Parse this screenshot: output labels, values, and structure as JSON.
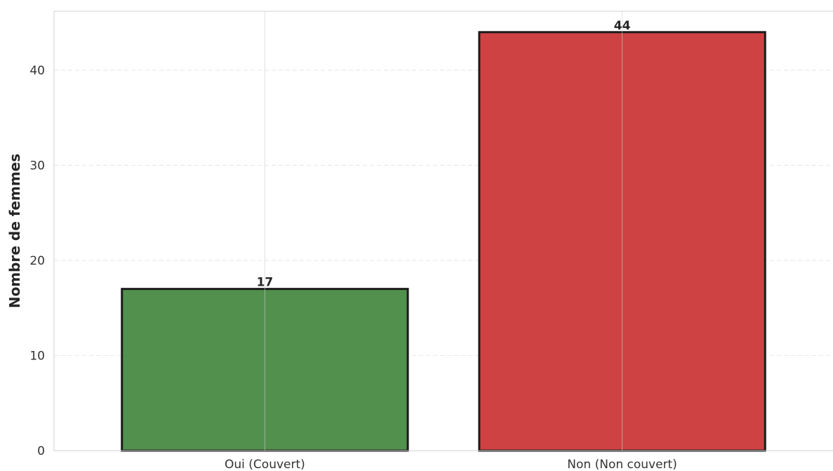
{
  "chart_data": {
    "type": "bar",
    "categories": [
      "Oui (Couvert)",
      "Non (Non couvert)"
    ],
    "values": [
      17,
      44
    ],
    "value_labels": [
      "17",
      "44"
    ],
    "colors": [
      "#3a8136",
      "#c8282a"
    ],
    "bar_edge_color": "#1a1a1a",
    "title": "",
    "xlabel": "",
    "ylabel": "Nombre de femmes",
    "ylim": [
      0,
      46.2
    ],
    "yticks": [
      0,
      10,
      20,
      30,
      40
    ],
    "ytick_labels": [
      "0",
      "10",
      "20",
      "30",
      "40"
    ],
    "grid": true,
    "grid_axis": "y dashed, x solid",
    "legend": "none"
  }
}
